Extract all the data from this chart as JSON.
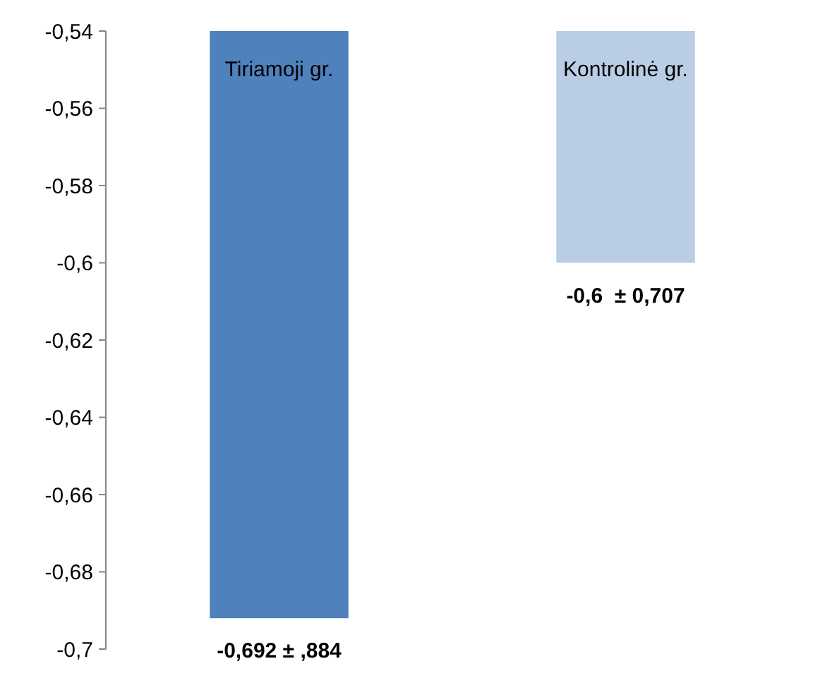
{
  "chart_data": {
    "type": "bar",
    "categories": [
      "Tiriamoji gr.",
      "Kontrolinė gr."
    ],
    "values": [
      -0.692,
      -0.6
    ],
    "colors": [
      "#4f81bd",
      "#b9cde5"
    ],
    "value_labels": [
      "-0,692 ± ,884",
      "-0,6  ± 0,707"
    ],
    "ylim": [
      -0.7,
      -0.54
    ],
    "yticks": [
      {
        "value": -0.7,
        "label": "-0,7"
      },
      {
        "value": -0.68,
        "label": "-0,68"
      },
      {
        "value": -0.66,
        "label": "-0,66"
      },
      {
        "value": -0.64,
        "label": "-0,64"
      },
      {
        "value": -0.62,
        "label": "-0,62"
      },
      {
        "value": -0.6,
        "label": "-0,6"
      },
      {
        "value": -0.58,
        "label": "-0,58"
      },
      {
        "value": -0.56,
        "label": "-0,56"
      },
      {
        "value": -0.54,
        "label": "-0,54"
      }
    ]
  }
}
